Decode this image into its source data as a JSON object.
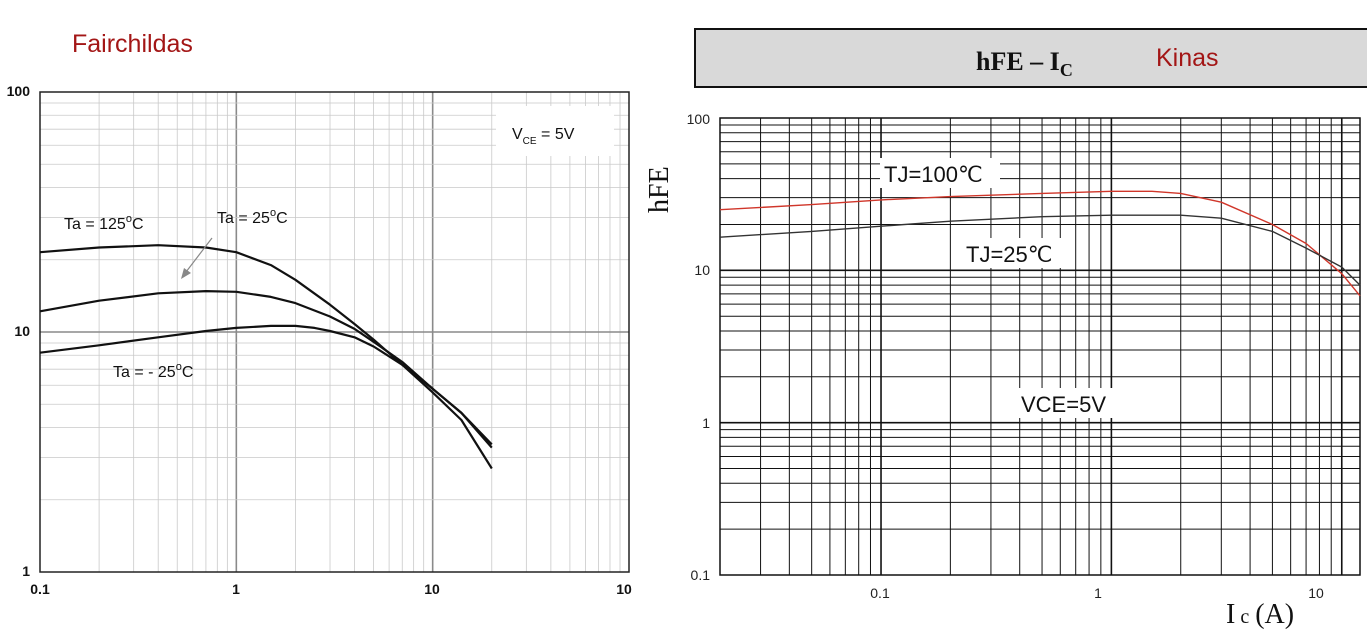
{
  "chart_data": [
    {
      "type": "line",
      "title": "Fairchildas",
      "xscale": "log",
      "yscale": "log",
      "xlim": [
        0.1,
        100
      ],
      "ylim": [
        1,
        100
      ],
      "x_ticks": [
        "0.1",
        "1",
        "10",
        "10"
      ],
      "y_ticks": [
        "1",
        "10",
        "100"
      ],
      "annotation": "V_CE = 5V",
      "series": [
        {
          "name": "Ta = 125°C",
          "x": [
            0.1,
            0.2,
            0.4,
            0.7,
            1,
            1.5,
            2,
            3,
            4,
            5,
            7,
            10,
            14,
            20
          ],
          "y": [
            21.5,
            22.5,
            23,
            22.5,
            21.5,
            19,
            16.5,
            13,
            10.8,
            9.3,
            7.3,
            5.6,
            4.3,
            2.7
          ]
        },
        {
          "name": "Ta = 25°C",
          "x": [
            0.1,
            0.2,
            0.4,
            0.7,
            1,
            1.5,
            2,
            3,
            4,
            5,
            7,
            10,
            14,
            20
          ],
          "y": [
            12.2,
            13.5,
            14.5,
            14.8,
            14.7,
            14.0,
            13.2,
            11.6,
            10.3,
            9.1,
            7.5,
            5.8,
            4.6,
            3.4
          ]
        },
        {
          "name": "Ta = - 25°C",
          "x": [
            0.1,
            0.2,
            0.4,
            0.7,
            1,
            1.5,
            2,
            2.5,
            3,
            4,
            5,
            7,
            10,
            14,
            20
          ],
          "y": [
            8.2,
            8.8,
            9.5,
            10.1,
            10.4,
            10.6,
            10.6,
            10.4,
            10.1,
            9.5,
            8.7,
            7.3,
            5.8,
            4.6,
            3.3
          ]
        }
      ]
    },
    {
      "type": "line",
      "title": "hFE – I",
      "title_sub": "C",
      "badge": "Kinas",
      "xlabel": "I",
      "xlabel_sub": "c",
      "xlabel_unit": "(A)",
      "ylabel": "hFE",
      "xscale": "log",
      "yscale": "log",
      "xlim": [
        0.02,
        12
      ],
      "ylim": [
        0.1,
        100
      ],
      "x_ticks": [
        "0.1",
        "1",
        "10"
      ],
      "y_ticks": [
        "0.1",
        "1",
        "10",
        "100"
      ],
      "annotation": "VCE=5V",
      "series": [
        {
          "name": "TJ=100℃",
          "color": "#d0362a",
          "x": [
            0.02,
            0.05,
            0.1,
            0.2,
            0.5,
            1,
            1.5,
            2,
            3,
            5,
            7,
            10,
            12
          ],
          "y": [
            25,
            27,
            29,
            30.5,
            32,
            33,
            33,
            32,
            28,
            20,
            15,
            9.5,
            6.8
          ]
        },
        {
          "name": "TJ=25℃",
          "color": "#333333",
          "x": [
            0.02,
            0.05,
            0.1,
            0.2,
            0.5,
            1,
            2,
            3,
            5,
            7,
            10,
            12
          ],
          "y": [
            16.5,
            18,
            19.5,
            21,
            22.5,
            23,
            23,
            22,
            18,
            14,
            10.5,
            8
          ]
        }
      ]
    }
  ]
}
